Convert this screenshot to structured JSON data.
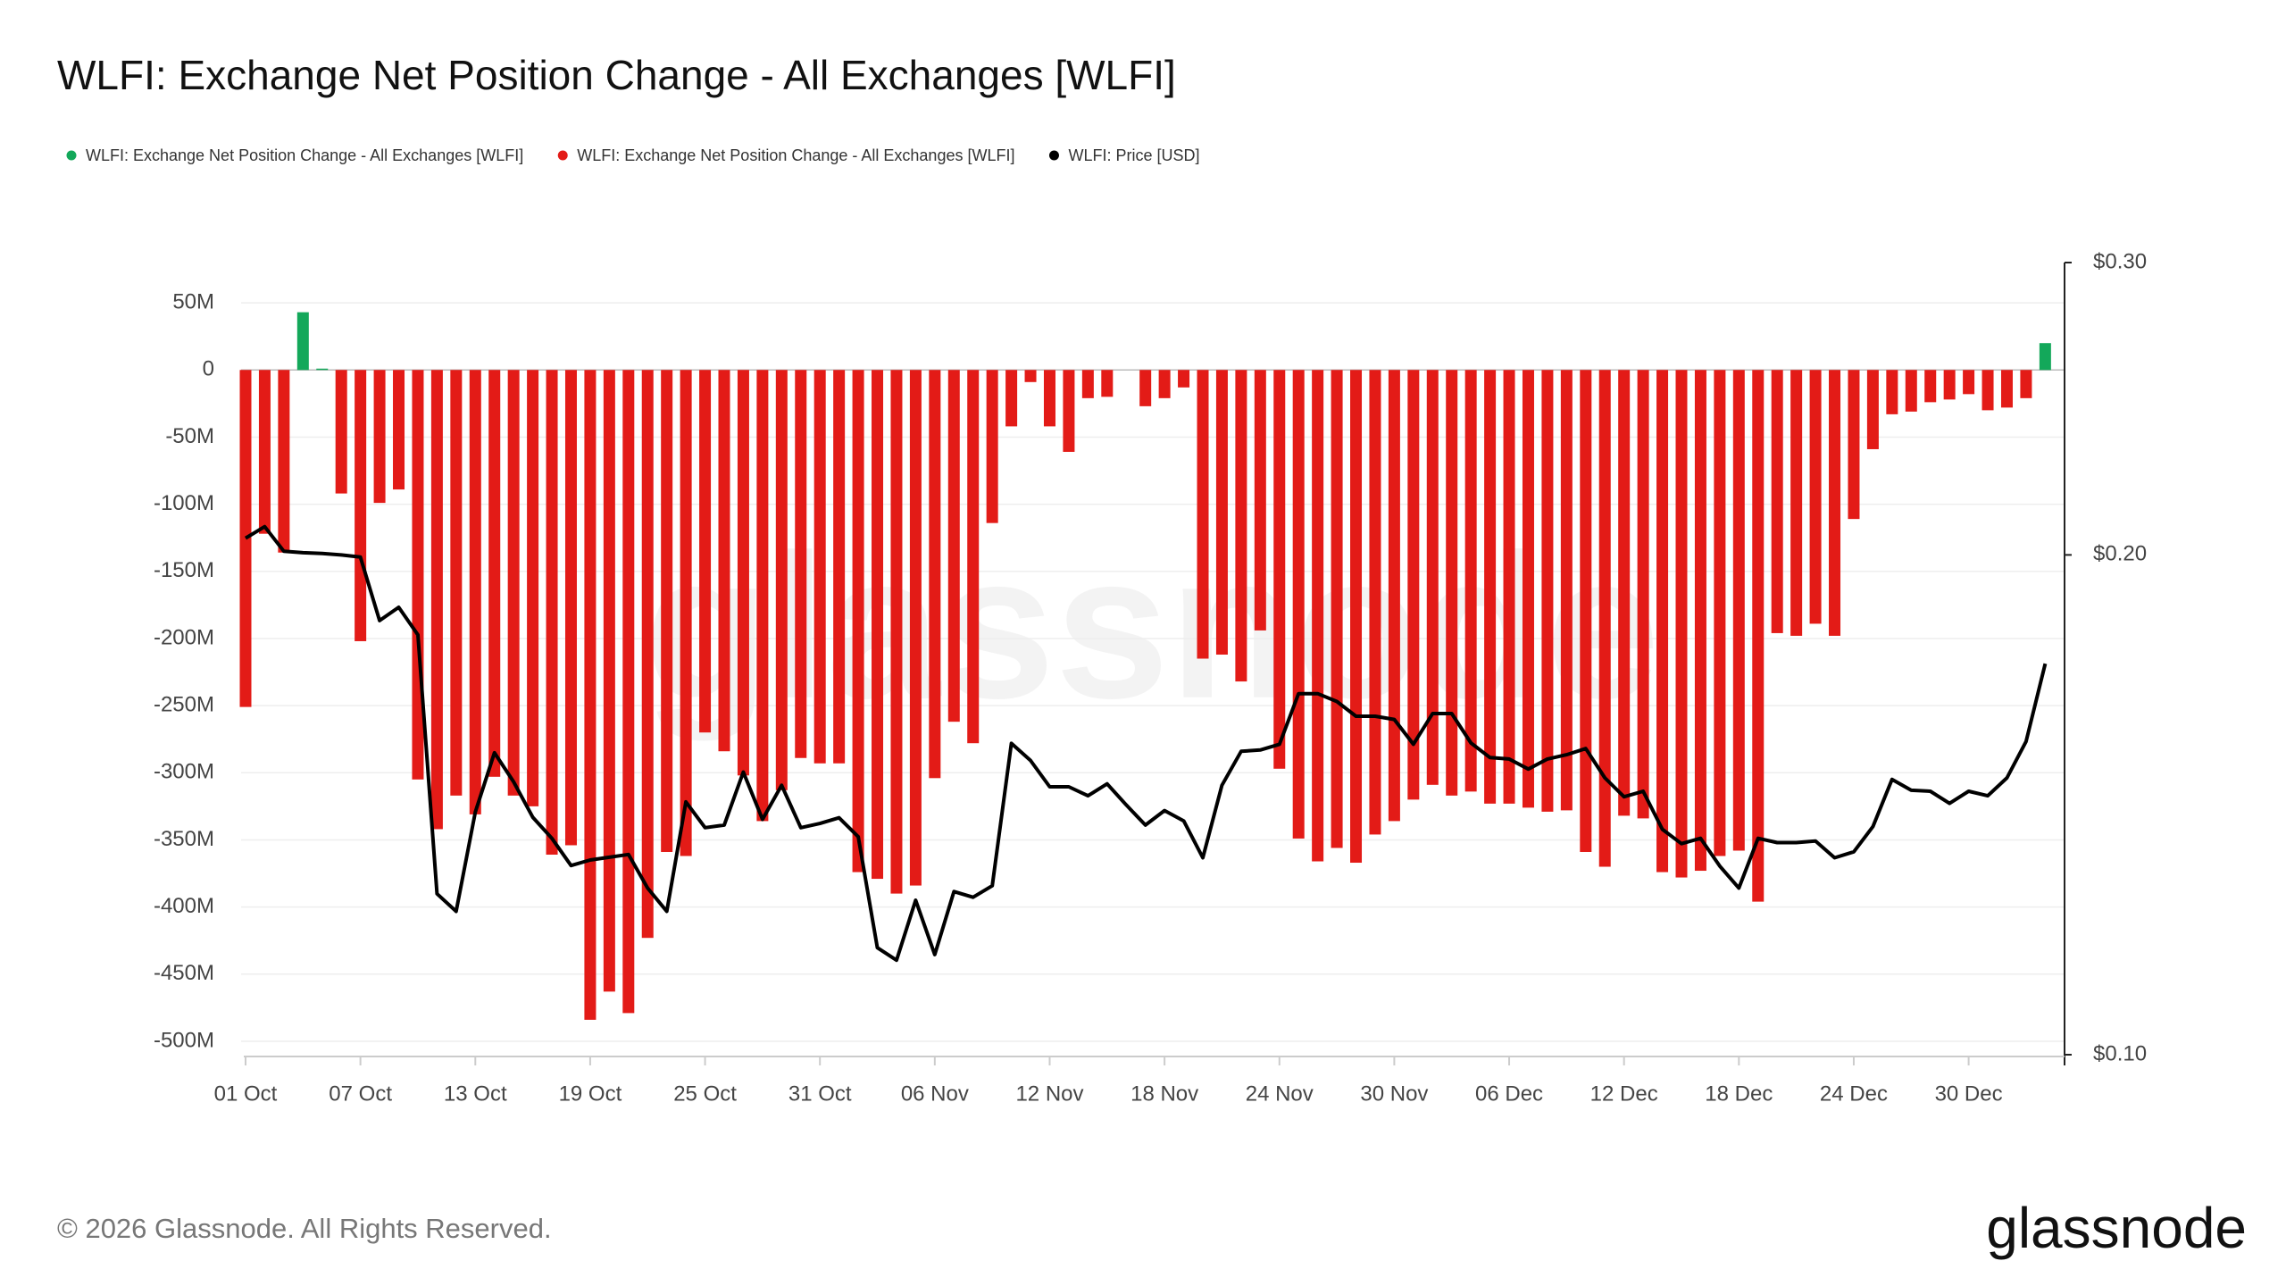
{
  "chart_data": {
    "type": "bar_line",
    "title": "WLFI: Exchange Net Position Change - All Exchanges [WLFI]",
    "watermark": "glassnode",
    "footer": "© 2026 Glassnode. All Rights Reserved.",
    "logo": "glassnode",
    "categories": [
      "01 Oct",
      null,
      null,
      null,
      null,
      null,
      "07 Oct",
      null,
      null,
      null,
      null,
      null,
      "13 Oct",
      null,
      null,
      null,
      null,
      null,
      "19 Oct",
      null,
      null,
      null,
      null,
      null,
      "25 Oct",
      null,
      null,
      null,
      null,
      null,
      "31 Oct",
      null,
      null,
      null,
      null,
      null,
      "06 Nov",
      null,
      null,
      null,
      null,
      null,
      "12 Nov",
      null,
      null,
      null,
      null,
      null,
      "18 Nov",
      null,
      null,
      null,
      null,
      null,
      "24 Nov",
      null,
      null,
      null,
      null,
      null,
      "30 Nov",
      null,
      null,
      null,
      null,
      null,
      "06 Dec",
      null,
      null,
      null,
      null,
      null,
      "12 Dec",
      null,
      null,
      null,
      null,
      null,
      "18 Dec",
      null,
      null,
      null,
      null,
      null,
      "24 Dec",
      null,
      null,
      null,
      null,
      null,
      "30 Dec",
      null,
      null,
      null,
      null
    ],
    "series": [
      {
        "name": "WLFI: Exchange Net Position Change - All Exchanges [WLFI]",
        "color": "#13a85a",
        "kind": "bar",
        "values": [
          null,
          null,
          null,
          43,
          1,
          null,
          null,
          null,
          null,
          null,
          null,
          null,
          null,
          null,
          null,
          null,
          null,
          null,
          null,
          null,
          null,
          null,
          null,
          null,
          null,
          null,
          null,
          null,
          null,
          null,
          null,
          null,
          null,
          null,
          null,
          null,
          null,
          null,
          null,
          null,
          null,
          null,
          null,
          null,
          null,
          null,
          null,
          null,
          null,
          null,
          null,
          null,
          null,
          null,
          null,
          null,
          null,
          null,
          null,
          null,
          null,
          null,
          null,
          null,
          null,
          null,
          null,
          null,
          null,
          null,
          null,
          null,
          null,
          null,
          null,
          null,
          null,
          null,
          null,
          null,
          null,
          null,
          null,
          null,
          null,
          null,
          null,
          null,
          null,
          null,
          null,
          null,
          null,
          null,
          20
        ]
      },
      {
        "name": "WLFI: Exchange Net Position Change - All Exchanges [WLFI]",
        "color": "#e31b17",
        "kind": "bar",
        "values": [
          -251,
          -122,
          -136,
          null,
          null,
          -92,
          -202,
          -99,
          -89,
          -305,
          -342,
          -317,
          -331,
          -303,
          -317,
          -325,
          -361,
          -354,
          -484,
          -463,
          -479,
          -423,
          -359,
          -362,
          -270,
          -284,
          -302,
          -336,
          -313,
          -289,
          -293,
          -293,
          -374,
          -379,
          -390,
          -384,
          -304,
          -262,
          -278,
          -114,
          -42,
          -9,
          -42,
          -61,
          -21,
          -20,
          null,
          -27,
          -21,
          -13,
          -215,
          -212,
          -232,
          -194,
          -297,
          -349,
          -366,
          -356,
          -367,
          -346,
          -336,
          -320,
          -309,
          -317,
          -314,
          -323,
          -323,
          -326,
          -329,
          -328,
          -359,
          -370,
          -332,
          -334,
          -374,
          -378,
          -373,
          -362,
          -358,
          -396,
          -196,
          -198,
          -189,
          -198,
          -111,
          -59,
          -33,
          -31,
          -24,
          -22,
          -18,
          -30,
          -28,
          -21,
          null
        ]
      },
      {
        "name": "WLFI: Price [USD]",
        "color": "#000000",
        "kind": "line",
        "axis": "y2",
        "values": [
          0.2047,
          0.208,
          0.201,
          0.2006,
          0.2004,
          0.2,
          0.1994,
          0.1826,
          0.186,
          0.179,
          0.125,
          0.122,
          0.14,
          0.152,
          0.146,
          0.139,
          0.135,
          0.13,
          0.131,
          0.1315,
          0.132,
          0.126,
          0.122,
          0.142,
          0.137,
          0.1375,
          0.148,
          0.1386,
          0.1453,
          0.137,
          0.1378,
          0.1389,
          0.1353,
          0.116,
          0.114,
          0.1239,
          0.1149,
          0.1254,
          0.1244,
          0.1264,
          0.154,
          0.1504,
          0.145,
          0.145,
          0.1432,
          0.1456,
          0.1414,
          0.1375,
          0.1403,
          0.1383,
          0.1314,
          0.1453,
          0.1523,
          0.1526,
          0.1538,
          0.165,
          0.165,
          0.1632,
          0.1599,
          0.1599,
          0.1592,
          0.1538,
          0.1605,
          0.1605,
          0.1541,
          0.151,
          0.1507,
          0.1486,
          0.1507,
          0.1516,
          0.1529,
          0.1468,
          0.143,
          0.1441,
          0.1367,
          0.134,
          0.135,
          0.1299,
          0.126,
          0.135,
          0.1342,
          0.1342,
          0.1345,
          0.1314,
          0.1325,
          0.1372,
          0.1465,
          0.1443,
          0.1441,
          0.1417,
          0.1441,
          0.1432,
          0.1468,
          0.1544,
          0.172
        ]
      }
    ],
    "ylim": [
      -510,
      80
    ],
    "yticks": [
      {
        "value": 50,
        "label": "50M"
      },
      0,
      {
        "value": -50,
        "label": "-50M"
      },
      {
        "value": -100,
        "label": "-100M"
      },
      {
        "value": -150,
        "label": "-150M"
      },
      {
        "value": -200,
        "label": "-200M"
      },
      {
        "value": -250,
        "label": "-250M"
      },
      {
        "value": -300,
        "label": "-300M"
      },
      {
        "value": -350,
        "label": "-350M"
      },
      {
        "value": -400,
        "label": "-400M"
      },
      {
        "value": -450,
        "label": "-450M"
      },
      {
        "value": -500,
        "label": "-500M"
      }
    ],
    "y2lim": [
      0.1,
      0.3
    ],
    "y2ticks": [
      {
        "value": 0.3,
        "label": "$0.30"
      },
      {
        "value": 0.2,
        "label": "$0.20"
      },
      {
        "value": 0.1,
        "label": "$0.10"
      }
    ],
    "y2_log": true,
    "grid": true
  }
}
